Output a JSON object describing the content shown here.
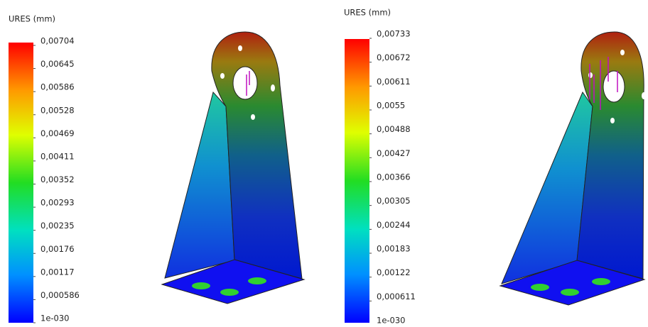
{
  "panels": [
    {
      "title": "URES (mm)",
      "labels": [
        "0,00704",
        "0,00645",
        "0,00586",
        "0,00528",
        "0,00469",
        "0,00411",
        "0,00352",
        "0,00293",
        "0,00235",
        "0,00176",
        "0,00117",
        "0,000586",
        "1e-030"
      ]
    },
    {
      "title": "URES (mm)",
      "labels": [
        "0,00733",
        "0,00672",
        "0,00611",
        "0,0055",
        "0,00488",
        "0,00427",
        "0,00366",
        "0,00305",
        "0,00244",
        "0,00183",
        "0,00122",
        "0,000611",
        "1e-030"
      ]
    }
  ]
}
